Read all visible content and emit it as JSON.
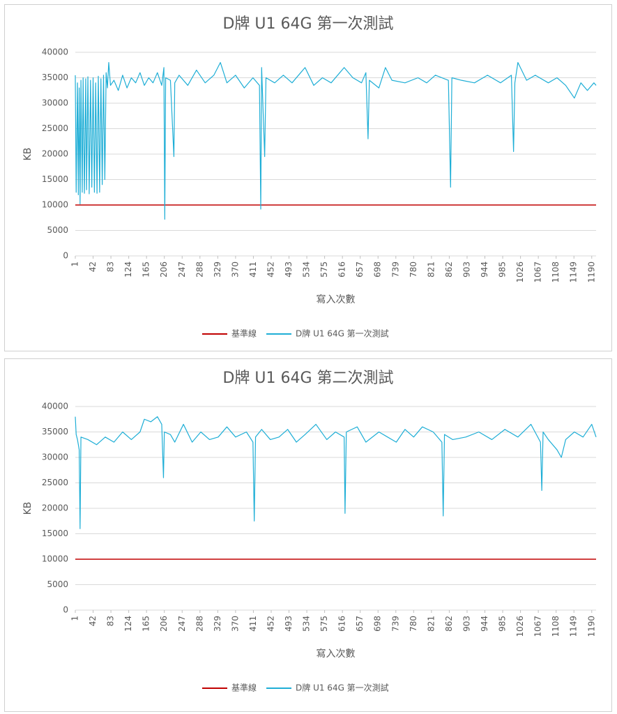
{
  "chart_data": [
    {
      "type": "line",
      "title": "D牌 U1 64G 第一次測試",
      "x_label": "寫入次數",
      "y_label": "KB",
      "xlim": [
        1,
        1200
      ],
      "xticks": [
        1,
        42,
        83,
        124,
        165,
        206,
        247,
        288,
        329,
        370,
        411,
        452,
        493,
        534,
        575,
        616,
        657,
        698,
        739,
        780,
        821,
        862,
        903,
        944,
        985,
        1026,
        1067,
        1108,
        1149,
        1190
      ],
      "ylim": [
        0,
        40000
      ],
      "yticks": [
        0,
        5000,
        10000,
        15000,
        20000,
        25000,
        30000,
        35000,
        40000
      ],
      "grid": true,
      "legend": "bottom",
      "series": [
        {
          "name": "基準線",
          "color": "#c00000",
          "x": [
            1,
            1200
          ],
          "values": [
            10000,
            10000
          ]
        },
        {
          "name": "D牌 U1 64G 第一次測試",
          "color": "#1eaed6",
          "x": [
            1,
            3,
            6,
            8,
            10,
            12,
            14,
            17,
            19,
            22,
            25,
            27,
            30,
            33,
            36,
            39,
            42,
            45,
            48,
            51,
            54,
            57,
            60,
            63,
            66,
            69,
            72,
            75,
            78,
            82,
            90,
            100,
            110,
            120,
            130,
            140,
            150,
            160,
            170,
            180,
            190,
            200,
            205,
            207,
            209,
            220,
            228,
            230,
            240,
            260,
            280,
            300,
            320,
            335,
            350,
            370,
            390,
            410,
            425,
            428,
            430,
            437,
            440,
            460,
            480,
            500,
            520,
            530,
            550,
            570,
            590,
            610,
            620,
            640,
            660,
            670,
            675,
            678,
            700,
            715,
            730,
            760,
            790,
            810,
            830,
            860,
            865,
            868,
            890,
            920,
            950,
            980,
            1005,
            1010,
            1013,
            1020,
            1040,
            1060,
            1090,
            1110,
            1130,
            1150,
            1165,
            1180,
            1195,
            1200
          ],
          "values": [
            35500,
            12500,
            34000,
            12000,
            33000,
            10200,
            34500,
            12500,
            35000,
            12300,
            34800,
            13000,
            35200,
            12200,
            34500,
            13500,
            35000,
            12500,
            34000,
            12300,
            35300,
            12500,
            34800,
            14000,
            35500,
            15000,
            36000,
            33000,
            38000,
            33500,
            34500,
            32500,
            35500,
            33000,
            35000,
            34000,
            36000,
            33500,
            35000,
            34000,
            36000,
            33500,
            37000,
            7200,
            35000,
            34500,
            19500,
            34000,
            35500,
            33500,
            36500,
            34000,
            35500,
            38000,
            34000,
            35500,
            33000,
            35000,
            33500,
            9200,
            37000,
            19500,
            35000,
            34000,
            35500,
            34000,
            36000,
            37000,
            33500,
            35000,
            34000,
            36000,
            37000,
            35000,
            34000,
            36000,
            23000,
            34500,
            33000,
            37000,
            34500,
            34000,
            35000,
            34000,
            35500,
            34500,
            13500,
            35000,
            34500,
            34000,
            35500,
            34000,
            35500,
            20500,
            34000,
            38000,
            34500,
            35500,
            34000,
            35000,
            33500,
            31000,
            34000,
            32500,
            34000,
            33500
          ]
        }
      ]
    },
    {
      "type": "line",
      "title": "D牌 U1 64G 第二次測試",
      "x_label": "寫入次數",
      "y_label": "KB",
      "xlim": [
        1,
        1200
      ],
      "xticks": [
        1,
        42,
        83,
        124,
        165,
        206,
        247,
        288,
        329,
        370,
        411,
        452,
        493,
        534,
        575,
        616,
        657,
        698,
        739,
        780,
        821,
        862,
        903,
        944,
        985,
        1026,
        1067,
        1108,
        1149,
        1190
      ],
      "ylim": [
        0,
        40000
      ],
      "yticks": [
        0,
        5000,
        10000,
        15000,
        20000,
        25000,
        30000,
        35000,
        40000
      ],
      "grid": true,
      "legend": "bottom",
      "series": [
        {
          "name": "基準線",
          "color": "#c00000",
          "x": [
            1,
            1200
          ],
          "values": [
            10000,
            10000
          ]
        },
        {
          "name": "D牌 U1 64G 第一次測試",
          "color": "#1eaed6",
          "x": [
            1,
            3,
            6,
            10,
            12,
            14,
            30,
            50,
            70,
            90,
            110,
            130,
            150,
            160,
            175,
            190,
            200,
            204,
            206,
            220,
            230,
            250,
            270,
            290,
            310,
            330,
            350,
            370,
            395,
            410,
            413,
            416,
            430,
            450,
            470,
            490,
            510,
            530,
            555,
            580,
            600,
            620,
            622,
            625,
            650,
            670,
            700,
            720,
            740,
            760,
            780,
            800,
            825,
            845,
            848,
            851,
            870,
            900,
            930,
            960,
            990,
            1020,
            1050,
            1072,
            1075,
            1078,
            1090,
            1110,
            1120,
            1130,
            1150,
            1170,
            1190,
            1200
          ],
          "values": [
            38000,
            34500,
            33500,
            31500,
            16000,
            34000,
            33500,
            32500,
            34000,
            33000,
            35000,
            33500,
            35000,
            37500,
            37000,
            38000,
            36500,
            26000,
            35000,
            34500,
            33000,
            36500,
            33000,
            35000,
            33500,
            34000,
            36000,
            34000,
            35000,
            33000,
            17500,
            34000,
            35500,
            33500,
            34000,
            35500,
            33000,
            34500,
            36500,
            33500,
            35000,
            34000,
            19000,
            35000,
            36000,
            33000,
            35000,
            34000,
            33000,
            35500,
            34000,
            36000,
            35000,
            33000,
            18500,
            34500,
            33500,
            34000,
            35000,
            33500,
            35500,
            34000,
            36500,
            33000,
            23500,
            35000,
            33500,
            31500,
            30000,
            33500,
            35000,
            34000,
            36500,
            34000
          ]
        }
      ]
    }
  ]
}
